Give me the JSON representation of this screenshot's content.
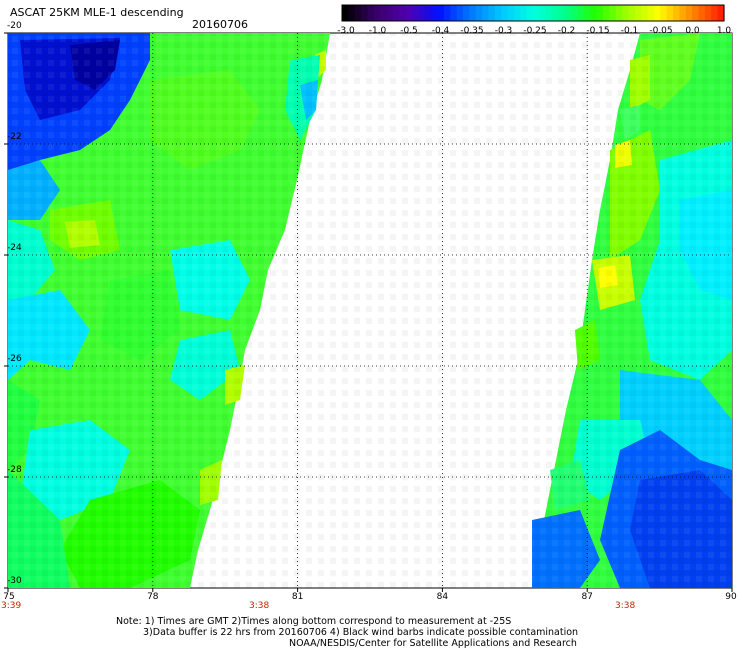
{
  "header": {
    "title": "ASCAT 25KM MLE-1 descending",
    "date": "20160706"
  },
  "colorbar": {
    "ticks": [
      "-3.0",
      "-1.0",
      "-0.5",
      "-0.4",
      "-0.35",
      "-0.3",
      "-0.25",
      "-0.2",
      "-0.15",
      "-0.1",
      "-0.05",
      "0.0",
      "1.0"
    ],
    "colors": [
      "#000000",
      "#3a0068",
      "#5000b0",
      "#0010ff",
      "#0078ff",
      "#00c8ff",
      "#00ffe0",
      "#00ff90",
      "#20ff00",
      "#a0ff00",
      "#ffff00",
      "#ff9000",
      "#ff2000"
    ]
  },
  "axes": {
    "x_ticks": [
      "75",
      "78",
      "81",
      "84",
      "87",
      "90"
    ],
    "y_ticks": [
      "-20",
      "-22",
      "-24",
      "-26",
      "-28",
      "-30"
    ],
    "times": [
      "3:39",
      "3:38",
      "3:38"
    ]
  },
  "notes": {
    "line1": "Note: 1) Times are GMT 2)Times along bottom correspond to measurement at -25S",
    "line2": "3)Data buffer is 22 hrs from 20160706 4) Black wind barbs indicate possible contamination",
    "line3": "NOAA/NESDIS/Center for Satellite Applications and Research"
  },
  "colors": {
    "cyan": "#00ffff",
    "green": "#20ff00",
    "blue": "#0040ff",
    "yellow": "#ffff00",
    "time_red": "#cc2200"
  }
}
